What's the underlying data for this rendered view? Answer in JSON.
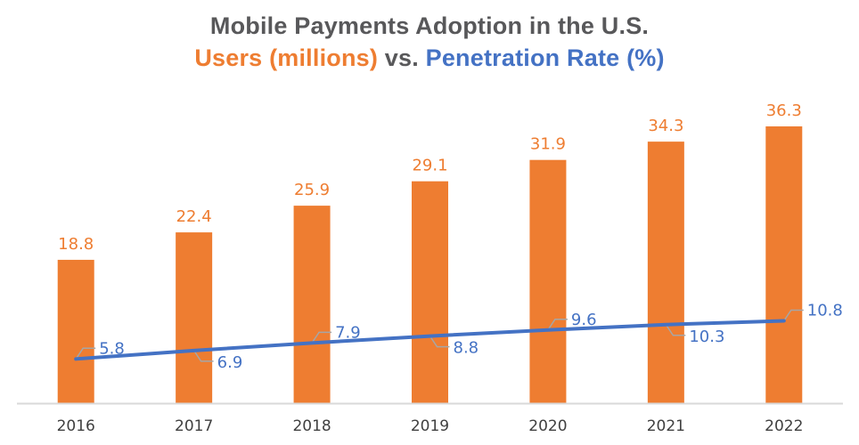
{
  "title": {
    "line1": "Mobile Payments Adoption in the U.S.",
    "line2_part1": "Users (millions)",
    "line2_part2": " vs. ",
    "line2_part3": "Penetration Rate (%)"
  },
  "colors": {
    "bar": "#ee7d31",
    "line": "#4472c4",
    "title": "#58585a",
    "axis": "#d9d9d9",
    "leader": "#a6a6a6"
  },
  "chart_data": {
    "type": "bar+line",
    "title": "Mobile Payments Adoption in the U.S. — Users (millions) vs. Penetration Rate (%)",
    "categories": [
      "2016",
      "2017",
      "2018",
      "2019",
      "2020",
      "2021",
      "2022"
    ],
    "series": [
      {
        "name": "Users (millions)",
        "type": "bar",
        "values": [
          18.8,
          22.4,
          25.9,
          29.1,
          31.9,
          34.3,
          36.3
        ],
        "labels": [
          "18.8",
          "22.4",
          "25.9",
          "29.1",
          "31.9",
          "34.3",
          "36.3"
        ]
      },
      {
        "name": "Penetration Rate (%)",
        "type": "line",
        "values": [
          5.8,
          6.9,
          7.9,
          8.8,
          9.6,
          10.3,
          10.8
        ],
        "labels": [
          "5.8",
          "6.9",
          "7.9",
          "8.8",
          "9.6",
          "10.3",
          "10.8"
        ],
        "label_side": [
          "above",
          "below",
          "above",
          "below",
          "above",
          "below",
          "above"
        ]
      }
    ],
    "xlabel": "",
    "ylabel": "",
    "ylim": [
      0,
      40
    ],
    "grid": false,
    "legend": "none"
  }
}
